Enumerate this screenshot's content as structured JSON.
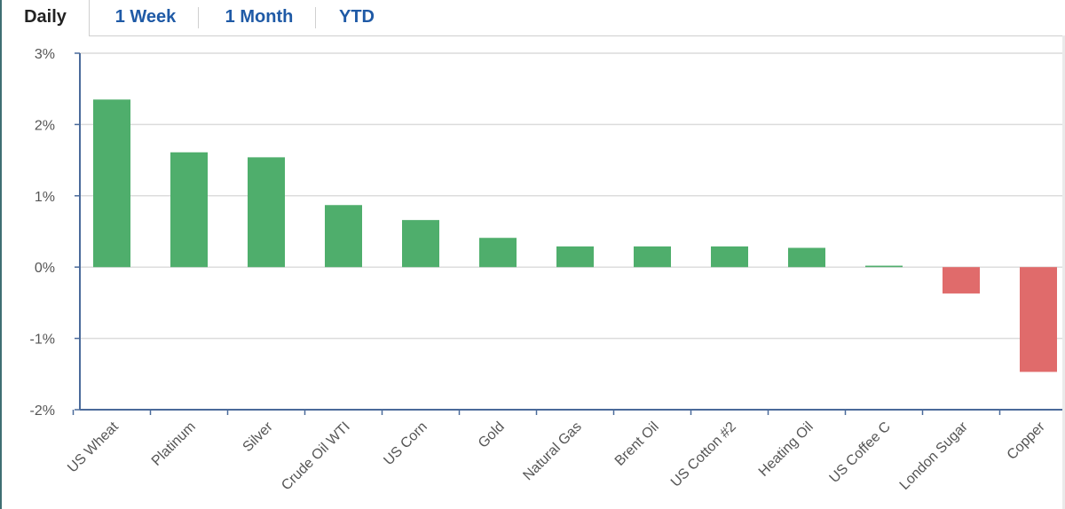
{
  "tabs": [
    {
      "label": "Daily",
      "active": true
    },
    {
      "label": "1 Week",
      "active": false
    },
    {
      "label": "1 Month",
      "active": false
    },
    {
      "label": "YTD",
      "active": false
    }
  ],
  "colors": {
    "positive": "#4fae6c",
    "negative": "#e06b6b",
    "grid": "#dcdcdc",
    "axis": "#4a6a9a",
    "tab_link": "#1f5aa6"
  },
  "chart_data": {
    "type": "bar",
    "title": "",
    "xlabel": "",
    "ylabel": "",
    "ylim": [
      -2,
      3
    ],
    "yticks": [
      3,
      2,
      1,
      0,
      -1,
      -2
    ],
    "ytick_labels": [
      "3%",
      "2%",
      "1%",
      "0%",
      "-1%",
      "-2%"
    ],
    "grid": true,
    "categories": [
      "US Wheat",
      "Platinum",
      "Silver",
      "Crude Oil WTI",
      "US Corn",
      "Gold",
      "Natural Gas",
      "Brent Oil",
      "US Cotton #2",
      "Heating Oil",
      "US Coffee C",
      "London Sugar",
      "Copper"
    ],
    "values": [
      2.35,
      1.61,
      1.54,
      0.87,
      0.66,
      0.41,
      0.29,
      0.29,
      0.29,
      0.27,
      0.02,
      -0.37,
      -1.47
    ]
  }
}
